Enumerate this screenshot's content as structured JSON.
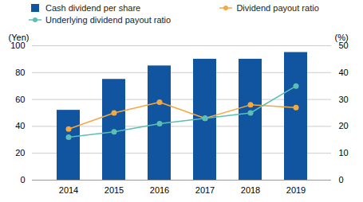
{
  "chart_data": {
    "type": "bar",
    "categories": [
      "2014",
      "2015",
      "2016",
      "2017",
      "2018",
      "2019"
    ],
    "series": [
      {
        "name": "Cash dividend per share",
        "type": "bar",
        "color": "#1155a0",
        "values": [
          52,
          75,
          85,
          90,
          90,
          95
        ]
      },
      {
        "name": "Dividend payout ratio",
        "type": "line",
        "color": "#f5a742",
        "marker": "circle",
        "axis": "y2",
        "values": [
          19,
          25,
          29,
          23,
          28,
          27
        ]
      },
      {
        "name": "Underlying dividend payout ratio",
        "type": "line",
        "color": "#5bbfb5",
        "marker": "circle",
        "axis": "y2",
        "values": [
          16,
          18,
          21,
          23,
          25,
          35
        ]
      }
    ],
    "ylabel": "(Yen)",
    "y2label": "(%)",
    "ylim": [
      0,
      100
    ],
    "yticks": [
      0,
      20,
      40,
      60,
      80,
      100
    ],
    "y2lim": [
      0,
      50
    ],
    "y2ticks": [
      0,
      10,
      20,
      30,
      40,
      50
    ],
    "grid": true,
    "legend": "upper left"
  }
}
